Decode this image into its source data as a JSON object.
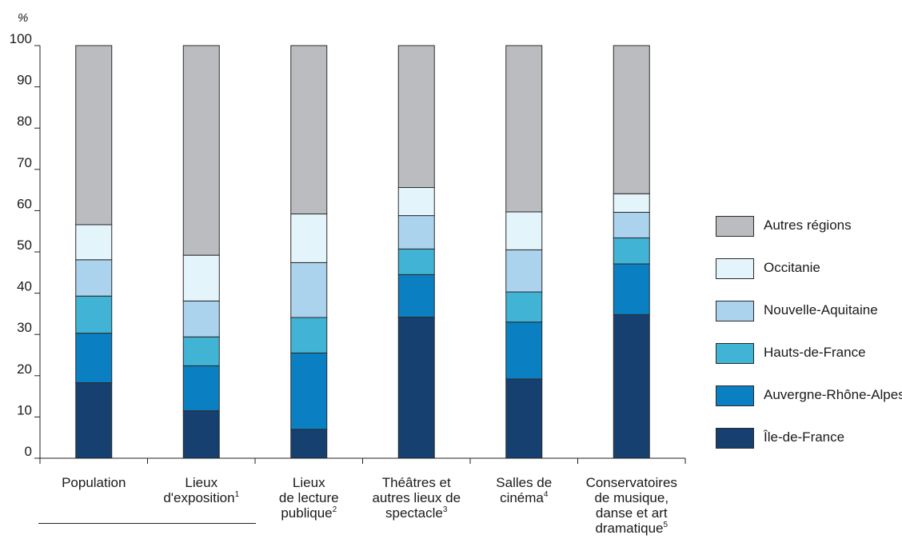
{
  "chart_data": {
    "type": "bar",
    "stacked": true,
    "ylabel": "%",
    "ylim": [
      0,
      100
    ],
    "yticks": [
      0,
      10,
      20,
      30,
      40,
      50,
      60,
      70,
      80,
      90,
      100
    ],
    "grid": false,
    "legend_position": "right",
    "categories": [
      {
        "lines": [
          "Population"
        ],
        "sup": ""
      },
      {
        "lines": [
          "Lieux",
          "d'exposition"
        ],
        "sup": "1"
      },
      {
        "lines": [
          "Lieux",
          "de lecture",
          "publique"
        ],
        "sup": "2"
      },
      {
        "lines": [
          "Théâtres et",
          "autres lieux de",
          "spectacle"
        ],
        "sup": "3"
      },
      {
        "lines": [
          "Salles de",
          "cinéma"
        ],
        "sup": "4"
      },
      {
        "lines": [
          "Conservatoires",
          "de musique,",
          "danse et art",
          "dramatique"
        ],
        "sup": "5"
      }
    ],
    "series": [
      {
        "name": "Île-de-France",
        "color": "#15406f",
        "values": [
          18.3,
          11.5,
          7.0,
          34.2,
          19.2,
          34.8
        ]
      },
      {
        "name": "Auvergne-Rhône-Alpes",
        "color": "#0a7fc1",
        "values": [
          12.0,
          10.9,
          18.5,
          10.3,
          13.8,
          12.3
        ]
      },
      {
        "name": "Hauts-de-France",
        "color": "#41b3d5",
        "values": [
          9.0,
          7.0,
          8.6,
          6.2,
          7.3,
          6.3
        ]
      },
      {
        "name": "Nouvelle-Aquitaine",
        "color": "#abd3ee",
        "values": [
          8.8,
          8.7,
          13.3,
          8.1,
          10.2,
          6.2
        ]
      },
      {
        "name": "Occitanie",
        "color": "#e3f4fb",
        "values": [
          8.5,
          11.1,
          11.8,
          6.8,
          9.2,
          4.5
        ]
      },
      {
        "name": "Autres régions",
        "color": "#babcbf",
        "values": [
          43.4,
          50.8,
          40.8,
          34.4,
          40.3,
          35.9
        ]
      }
    ]
  }
}
